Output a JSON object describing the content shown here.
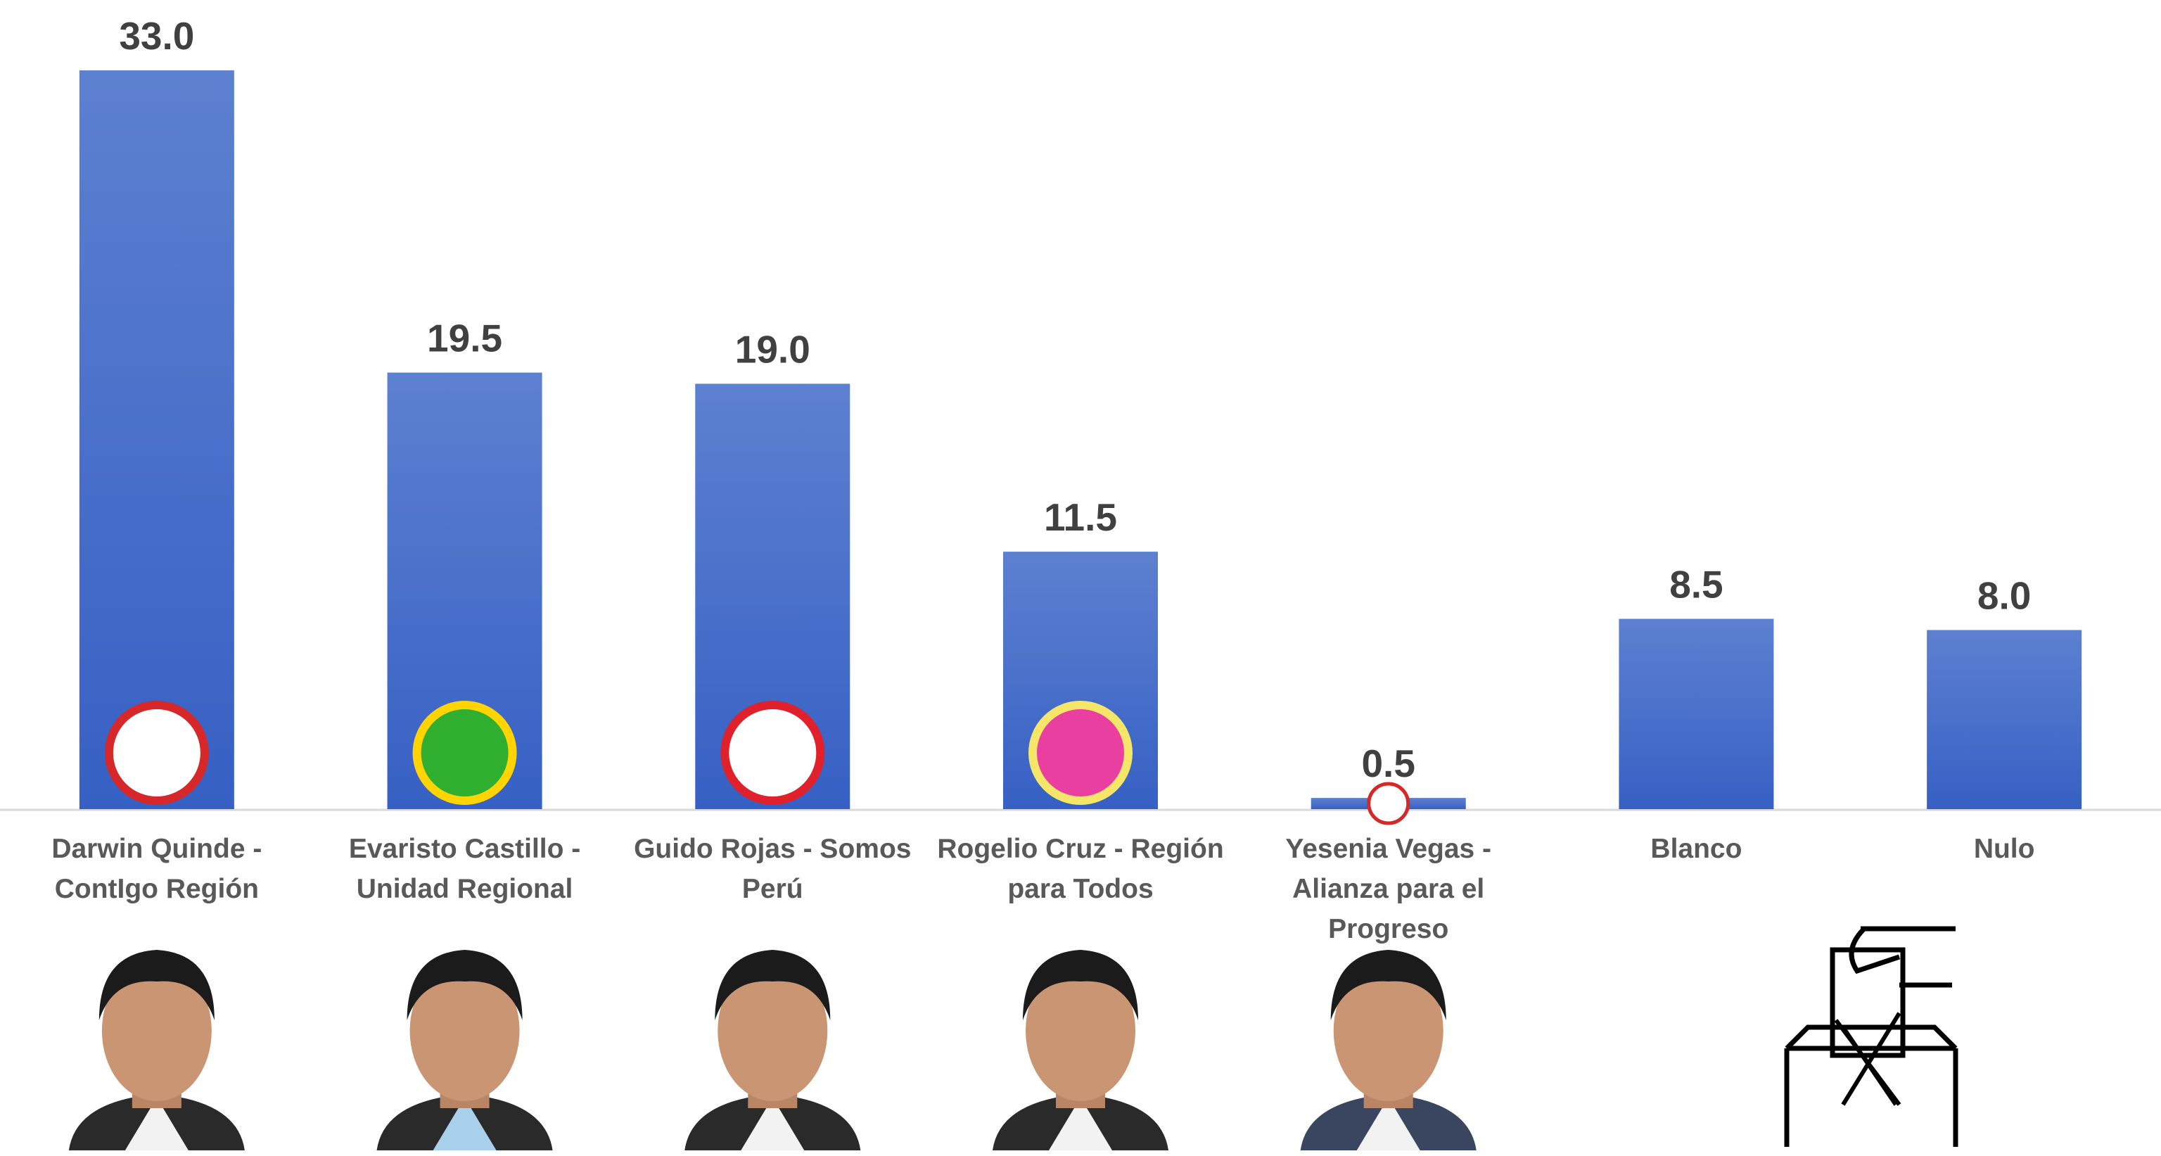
{
  "chart_data": {
    "type": "bar",
    "categories": [
      "Darwin Quinde - ContIgo Región",
      "Evaristo Castillo - Unidad Regional",
      "Guido Rojas - Somos Perú",
      "Rogelio Cruz -  Región para Todos",
      "Yesenia Vegas - Alianza para el Progreso",
      "Blanco",
      "Nulo"
    ],
    "values": [
      33.0,
      19.5,
      19.0,
      11.5,
      0.5,
      8.5,
      8.0
    ],
    "value_labels": [
      "33.0",
      "19.5",
      "19.0",
      "11.5",
      "0.5",
      "8.5",
      "8.0"
    ],
    "color": "#4472c4",
    "ylim": [
      0,
      33
    ]
  }
}
